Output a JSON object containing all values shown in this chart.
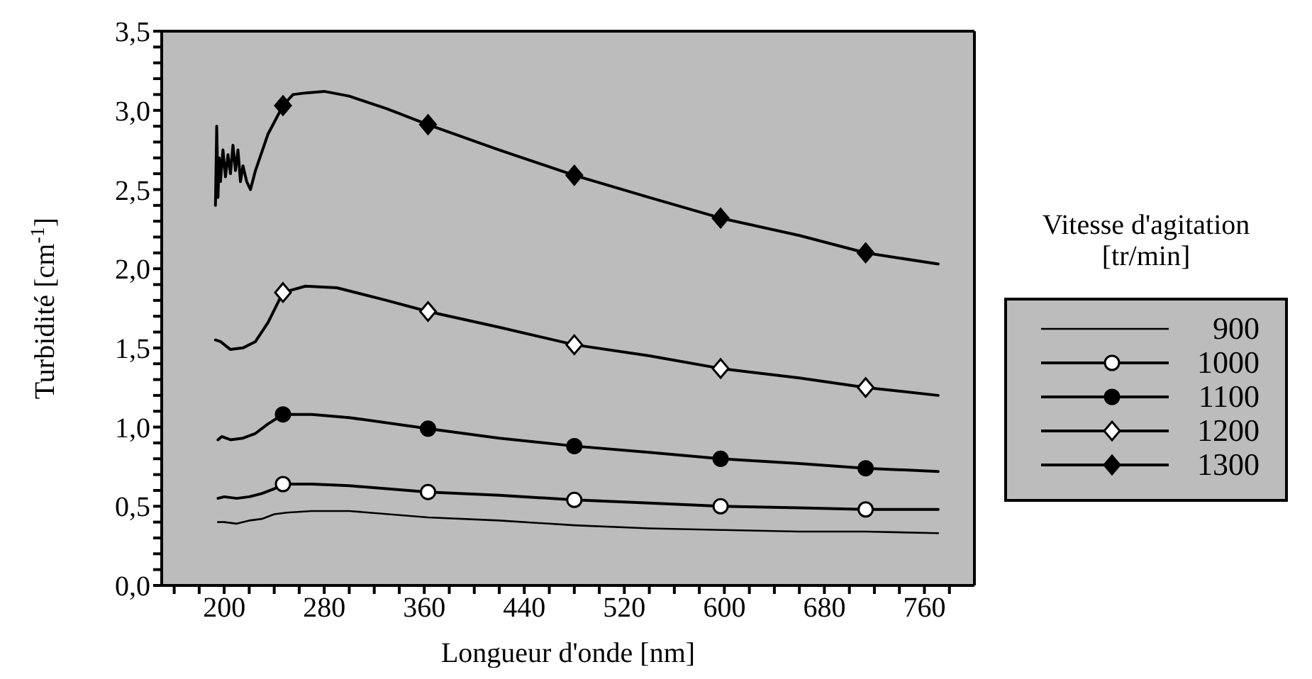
{
  "chart_data": {
    "type": "line",
    "xlabel": "Longueur d'onde [nm]",
    "ylabel": "Turbidité [cm$^{-1}$]",
    "legend_title": "Vitesse d'agitation\n[tr/min]",
    "legend": "right",
    "grid": false,
    "marker": "none",
    "xlim": [
      150,
      800
    ],
    "ylim": [
      0,
      3.5
    ],
    "xticks": [
      {
        "value": 160,
        "label": null
      },
      {
        "value": 180,
        "label": null
      },
      200,
      {
        "value": 220,
        "label": null
      },
      {
        "value": 240,
        "label": null
      },
      {
        "value": 260,
        "label": null
      },
      280,
      {
        "value": 300,
        "label": null
      },
      {
        "value": 320,
        "label": null
      },
      {
        "value": 340,
        "label": null
      },
      360,
      {
        "value": 380,
        "label": null
      },
      {
        "value": 400,
        "label": null
      },
      {
        "value": 420,
        "label": null
      },
      440,
      {
        "value": 460,
        "label": null
      },
      {
        "value": 480,
        "label": null
      },
      {
        "value": 500,
        "label": null
      },
      520,
      {
        "value": 540,
        "label": null
      },
      {
        "value": 560,
        "label": null
      },
      {
        "value": 580,
        "label": null
      },
      600,
      {
        "value": 620,
        "label": null
      },
      {
        "value": 640,
        "label": null
      },
      {
        "value": 660,
        "label": null
      },
      680,
      {
        "value": 700,
        "label": null
      },
      {
        "value": 720,
        "label": null
      },
      {
        "value": 740,
        "label": null
      },
      760,
      {
        "value": 780,
        "label": null
      }
    ],
    "yticks": [
      {
        "value": 0,
        "label": "0,0"
      },
      {
        "value": 0.1,
        "label": null
      },
      {
        "value": 0.2,
        "label": null
      },
      {
        "value": 0.3,
        "label": null
      },
      {
        "value": 0.4,
        "label": null
      },
      {
        "value": 0.5,
        "label": "0,5"
      },
      {
        "value": 0.6,
        "label": null
      },
      {
        "value": 0.7,
        "label": null
      },
      {
        "value": 0.8,
        "label": null
      },
      {
        "value": 0.9,
        "label": null
      },
      {
        "value": 1,
        "label": "1,0"
      },
      {
        "value": 1.1,
        "label": null
      },
      {
        "value": 1.2,
        "label": null
      },
      {
        "value": 1.3,
        "label": null
      },
      {
        "value": 1.4,
        "label": null
      },
      {
        "value": 1.5,
        "label": "1,5"
      },
      {
        "value": 1.6,
        "label": null
      },
      {
        "value": 1.7,
        "label": null
      },
      {
        "value": 1.8,
        "label": null
      },
      {
        "value": 1.9,
        "label": null
      },
      {
        "value": 2,
        "label": "2,0"
      },
      {
        "value": 2.1,
        "label": null
      },
      {
        "value": 2.2,
        "label": null
      },
      {
        "value": 2.3,
        "label": null
      },
      {
        "value": 2.4,
        "label": null
      },
      {
        "value": 2.5,
        "label": "2,5"
      },
      {
        "value": 2.6,
        "label": null
      },
      {
        "value": 2.7,
        "label": null
      },
      {
        "value": 2.8,
        "label": null
      },
      {
        "value": 2.9,
        "label": null
      },
      {
        "value": 3,
        "label": "3,0"
      },
      {
        "value": 3.1,
        "label": null
      },
      {
        "value": 3.2,
        "label": null
      },
      {
        "value": 3.3,
        "label": null
      },
      {
        "value": 3.4,
        "label": null
      },
      {
        "value": 3.5,
        "label": "3,5"
      }
    ],
    "series": [
      {
        "name": "900",
        "color": "#000000",
        "x": [
          195,
          200,
          210,
          220,
          230,
          240,
          250,
          270,
          300,
          363,
          420,
          480,
          540,
          600,
          660,
          713,
          771
        ],
        "values": [
          0.4,
          0.4,
          0.39,
          0.41,
          0.42,
          0.45,
          0.46,
          0.47,
          0.47,
          0.43,
          0.41,
          0.38,
          0.36,
          0.35,
          0.34,
          0.34,
          0.33
        ]
      },
      {
        "name": "1000",
        "color": "#000000",
        "x": [
          195,
          200,
          210,
          220,
          230,
          240,
          247,
          270,
          300,
          363,
          420,
          480,
          540,
          597,
          660,
          713,
          771
        ],
        "values": [
          0.55,
          0.56,
          0.55,
          0.56,
          0.58,
          0.61,
          0.64,
          0.64,
          0.63,
          0.59,
          0.57,
          0.54,
          0.52,
          0.5,
          0.49,
          0.48,
          0.48
        ]
      },
      {
        "type": "scatter",
        "marker": "circle",
        "color": "#000000",
        "x": [
          247,
          363,
          480,
          597,
          713
        ],
        "values": [
          0.64,
          0.59,
          0.54,
          0.5,
          0.48
        ],
        "colors": [
          "#ffffff",
          "#ffffff",
          "#ffffff",
          "#ffffff",
          "#ffffff"
        ]
      },
      {
        "name": "1100",
        "color": "#000000",
        "x": [
          195,
          198,
          205,
          215,
          225,
          235,
          247,
          270,
          300,
          363,
          420,
          480,
          540,
          597,
          660,
          713,
          771
        ],
        "values": [
          0.92,
          0.94,
          0.92,
          0.93,
          0.96,
          1.02,
          1.08,
          1.08,
          1.06,
          0.99,
          0.93,
          0.88,
          0.84,
          0.8,
          0.77,
          0.74,
          0.72
        ]
      },
      {
        "type": "scatter",
        "marker": "circle",
        "color": "#000000",
        "x": [
          247,
          363,
          480,
          597,
          713
        ],
        "values": [
          1.08,
          0.99,
          0.88,
          0.8,
          0.74
        ],
        "colors": [
          "#000000",
          "#000000",
          "#000000",
          "#000000",
          "#000000"
        ]
      },
      {
        "name": "1200",
        "color": "#000000",
        "x": [
          193,
          197,
          205,
          215,
          225,
          235,
          247,
          265,
          290,
          330,
          363,
          420,
          480,
          540,
          597,
          660,
          713,
          771
        ],
        "values": [
          1.55,
          1.54,
          1.49,
          1.5,
          1.54,
          1.66,
          1.85,
          1.89,
          1.88,
          1.8,
          1.73,
          1.63,
          1.52,
          1.45,
          1.37,
          1.31,
          1.25,
          1.2
        ]
      },
      {
        "type": "scatter",
        "marker": "diamond",
        "color": "#000000",
        "x": [
          247,
          363,
          480,
          597,
          713
        ],
        "values": [
          1.85,
          1.73,
          1.52,
          1.37,
          1.25
        ],
        "colors": [
          "#ffffff",
          "#ffffff",
          "#ffffff",
          "#ffffff",
          "#ffffff"
        ]
      },
      {
        "name": "1300",
        "color": "#000000",
        "x": [
          193,
          194,
          195,
          196,
          197,
          199,
          201,
          203,
          205,
          207,
          209,
          211,
          213,
          215,
          218,
          221,
          225,
          235,
          247,
          255,
          265,
          280,
          300,
          330,
          363,
          420,
          480,
          540,
          597,
          660,
          713,
          771
        ],
        "values": [
          2.4,
          2.9,
          2.45,
          2.7,
          2.55,
          2.75,
          2.58,
          2.72,
          2.6,
          2.78,
          2.62,
          2.75,
          2.55,
          2.65,
          2.55,
          2.5,
          2.62,
          2.85,
          3.03,
          3.1,
          3.11,
          3.12,
          3.09,
          3.01,
          2.91,
          2.75,
          2.59,
          2.45,
          2.32,
          2.21,
          2.1,
          2.03
        ]
      },
      {
        "type": "scatter",
        "marker": "diamond",
        "color": "#000000",
        "x": [
          247,
          363,
          480,
          597,
          713
        ],
        "values": [
          3.03,
          2.91,
          2.59,
          2.32,
          2.1
        ],
        "colors": [
          "#000000",
          "#000000",
          "#000000",
          "#000000",
          "#000000"
        ]
      }
    ]
  }
}
